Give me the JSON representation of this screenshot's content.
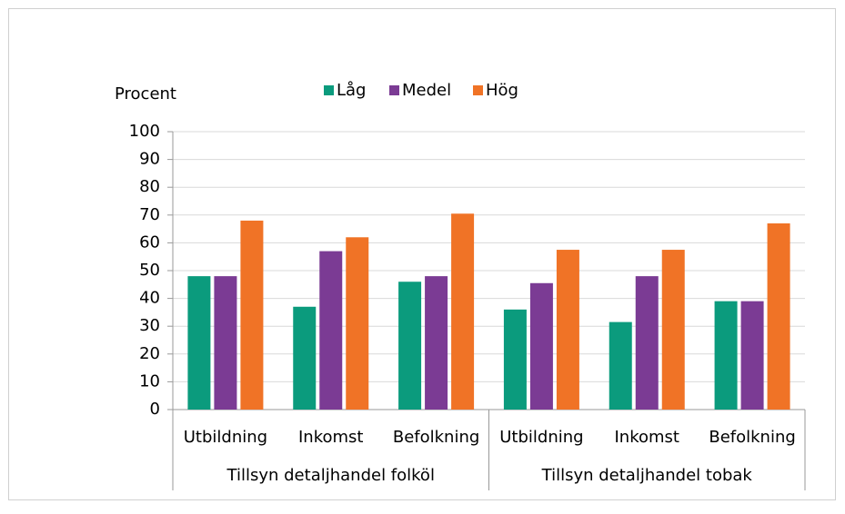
{
  "chart_data": {
    "type": "bar",
    "y_label": "Procent",
    "groups": [
      {
        "name": "Tillsyn detaljhandel folköl",
        "categories": [
          "Utbildning",
          "Inkomst",
          "Befolkning"
        ]
      },
      {
        "name": "Tillsyn detaljhandel tobak",
        "categories": [
          "Utbildning",
          "Inkomst",
          "Befolkning"
        ]
      }
    ],
    "series": [
      {
        "name": "Låg",
        "color": "#0b9b7d",
        "values": [
          48,
          37,
          46,
          36,
          31.5,
          39
        ]
      },
      {
        "name": "Medel",
        "color": "#7b3b94",
        "values": [
          48,
          57,
          48,
          45.5,
          48,
          39
        ]
      },
      {
        "name": "Hög",
        "color": "#f07326",
        "values": [
          68,
          62,
          70.5,
          57.5,
          57.5,
          67
        ]
      }
    ],
    "ylim": [
      0,
      100
    ],
    "yticks": [
      0,
      10,
      20,
      30,
      40,
      50,
      60,
      70,
      80,
      90,
      100
    ],
    "grid": true,
    "legend": "top"
  }
}
